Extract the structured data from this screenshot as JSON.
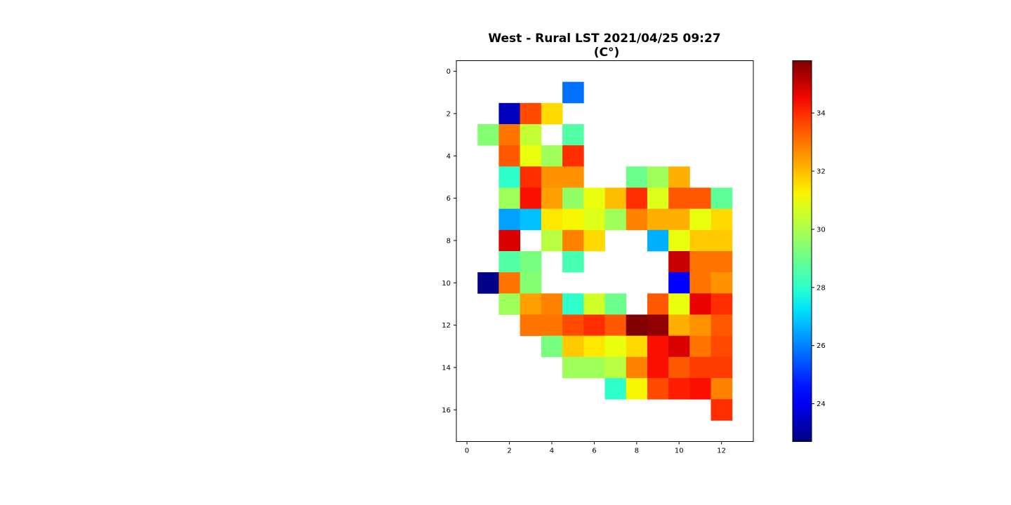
{
  "chart_data": {
    "type": "heatmap",
    "title_line1": "West - Rural LST 2021/04/25 09:27",
    "title_line2": "(C°)",
    "xlabel": "",
    "ylabel": "",
    "xlim": [
      -0.5,
      13.5
    ],
    "ylim": [
      17.5,
      -0.5
    ],
    "x_ticks": [
      0,
      2,
      4,
      6,
      8,
      10,
      12
    ],
    "y_ticks": [
      0,
      2,
      4,
      6,
      8,
      10,
      12,
      14,
      16
    ],
    "colormap": "jet",
    "color_range": [
      22.7,
      35.8
    ],
    "colorbar_ticks": [
      24,
      26,
      28,
      30,
      32,
      34
    ],
    "grid": false,
    "values": [
      [
        null,
        null,
        null,
        null,
        null,
        null,
        null,
        null,
        null,
        null,
        null,
        null,
        null,
        null
      ],
      [
        null,
        null,
        null,
        null,
        null,
        25.8,
        null,
        null,
        null,
        null,
        null,
        null,
        null,
        null
      ],
      [
        null,
        null,
        23.4,
        33.6,
        31.6,
        null,
        null,
        null,
        null,
        null,
        null,
        null,
        null,
        null
      ],
      [
        null,
        29.4,
        33.0,
        30.4,
        null,
        28.6,
        null,
        null,
        null,
        null,
        null,
        null,
        null,
        null
      ],
      [
        null,
        null,
        33.4,
        31.0,
        29.8,
        34.0,
        null,
        null,
        null,
        null,
        null,
        null,
        null,
        null
      ],
      [
        null,
        null,
        28.0,
        34.0,
        32.6,
        32.6,
        null,
        null,
        29.0,
        29.8,
        32.2,
        null,
        null,
        null
      ],
      [
        null,
        null,
        29.8,
        34.4,
        32.4,
        29.6,
        31.0,
        32.0,
        34.0,
        30.8,
        33.4,
        33.4,
        28.8,
        null
      ],
      [
        null,
        null,
        26.4,
        26.8,
        31.4,
        31.2,
        30.8,
        29.8,
        32.8,
        32.2,
        32.2,
        31.0,
        31.6,
        null
      ],
      [
        null,
        null,
        34.8,
        null,
        30.2,
        32.8,
        31.6,
        null,
        null,
        26.6,
        31.0,
        31.8,
        31.8,
        null
      ],
      [
        null,
        null,
        28.6,
        29.2,
        null,
        28.4,
        null,
        null,
        null,
        null,
        35.0,
        33.0,
        33.0,
        null
      ],
      [
        null,
        22.8,
        33.0,
        29.4,
        null,
        null,
        null,
        null,
        null,
        null,
        24.2,
        33.0,
        32.6,
        null
      ],
      [
        null,
        null,
        29.8,
        32.4,
        32.8,
        28.0,
        30.6,
        29.0,
        null,
        33.4,
        31.0,
        34.6,
        34.0,
        null
      ],
      [
        null,
        null,
        null,
        33.0,
        33.0,
        33.6,
        34.0,
        33.4,
        35.8,
        35.6,
        32.2,
        32.6,
        33.4,
        null
      ],
      [
        null,
        null,
        null,
        null,
        29.2,
        31.8,
        31.4,
        31.0,
        31.6,
        34.4,
        34.8,
        33.0,
        33.6,
        null
      ],
      [
        null,
        null,
        null,
        null,
        null,
        29.8,
        29.8,
        30.2,
        32.8,
        34.4,
        33.4,
        33.8,
        33.8,
        null
      ],
      [
        null,
        null,
        null,
        null,
        null,
        null,
        null,
        28.0,
        31.2,
        33.6,
        34.2,
        34.4,
        32.8,
        null
      ],
      [
        null,
        null,
        null,
        null,
        null,
        null,
        null,
        null,
        null,
        null,
        null,
        null,
        34.0,
        null
      ],
      [
        null,
        null,
        null,
        null,
        null,
        null,
        null,
        null,
        null,
        null,
        null,
        null,
        null,
        null
      ]
    ]
  }
}
